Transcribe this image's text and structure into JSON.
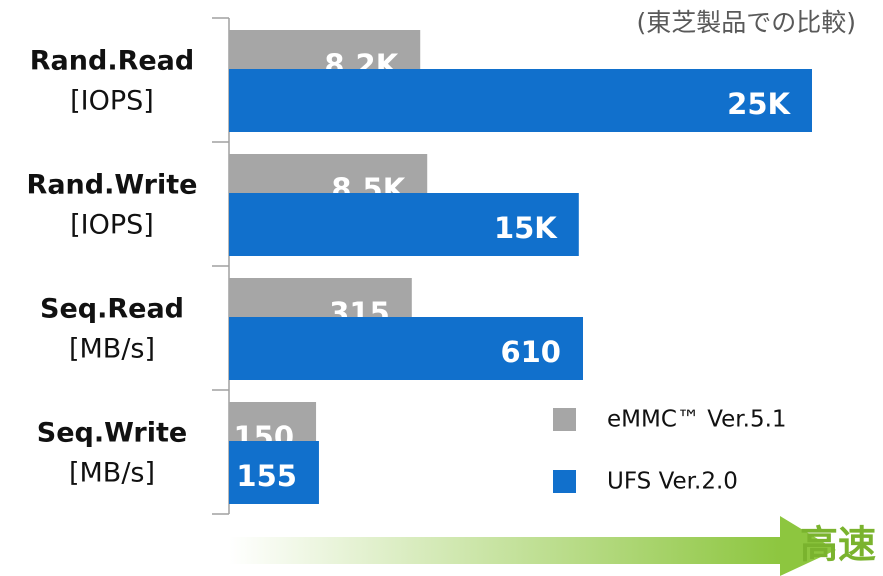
{
  "chart_data": {
    "type": "bar",
    "note": "(東芝製品での比較)",
    "categories": [
      "Rand.Read",
      "Rand.Write",
      "Seq.Read",
      "Seq.Write"
    ],
    "units": [
      "[IOPS]",
      "[IOPS]",
      "[MB/s]",
      "[MB/s]"
    ],
    "series": [
      {
        "name": "eMMC™ Ver.5.1",
        "color": "#a6a6a6",
        "values": [
          8200,
          8500,
          315,
          150
        ],
        "value_labels": [
          "8.2K",
          "8.5K",
          "315",
          "150"
        ]
      },
      {
        "name": "UFS Ver.2.0",
        "color": "#1170cc",
        "values": [
          25000,
          15000,
          610,
          155
        ],
        "value_labels": [
          "25K",
          "15K",
          "610",
          "155"
        ]
      }
    ],
    "arrow_label": "高速",
    "legend": "lower right"
  }
}
